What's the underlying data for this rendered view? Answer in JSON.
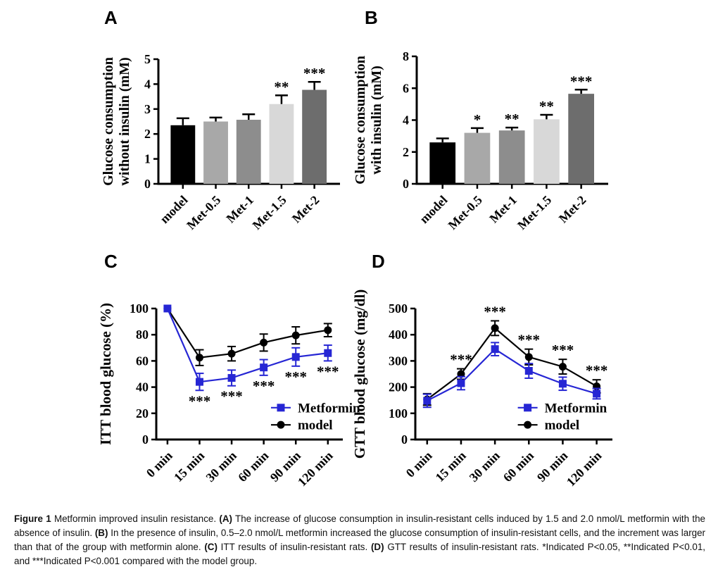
{
  "panels": [
    {
      "letter": "A"
    },
    {
      "letter": "B"
    },
    {
      "letter": "C"
    },
    {
      "letter": "D"
    }
  ],
  "colors": {
    "metformin_blue": "#2626d4",
    "model_black": "#000000",
    "axis": "#000000"
  },
  "chart_data": [
    {
      "panel": "A",
      "type": "bar",
      "ylabel_lines": [
        "Glucose consumption",
        "without insulin (mM)"
      ],
      "ylim": [
        0,
        5
      ],
      "yticks": [
        0,
        1,
        2,
        3,
        4,
        5
      ],
      "categories": [
        "model",
        "Met-0.5",
        "Met-1",
        "Met-1.5",
        "Met-2"
      ],
      "values": [
        2.35,
        2.5,
        2.57,
        3.2,
        3.77
      ],
      "errors": [
        0.28,
        0.16,
        0.22,
        0.35,
        0.32
      ],
      "sig": [
        "",
        "",
        "",
        "**",
        "***"
      ],
      "bar_colors": [
        "#000000",
        "#a8a8a8",
        "#8d8d8d",
        "#d8d8d8",
        "#6d6d6d"
      ],
      "grid": "off"
    },
    {
      "panel": "B",
      "type": "bar",
      "ylabel_lines": [
        "Glucose consumption",
        "with insulin (mM)"
      ],
      "ylim": [
        0,
        8
      ],
      "yticks": [
        0,
        2,
        4,
        6,
        8
      ],
      "categories": [
        "model",
        "Met-0.5",
        "Met-1",
        "Met-1.5",
        "Met-2"
      ],
      "values": [
        2.6,
        3.2,
        3.35,
        4.05,
        5.65
      ],
      "errors": [
        0.25,
        0.3,
        0.18,
        0.28,
        0.26
      ],
      "sig": [
        "",
        "*",
        "**",
        "**",
        "***"
      ],
      "bar_colors": [
        "#000000",
        "#a8a8a8",
        "#8d8d8d",
        "#d8d8d8",
        "#6d6d6d"
      ],
      "grid": "off"
    },
    {
      "panel": "C",
      "type": "line",
      "ylabel_lines": [
        "ITT blood glucose (%)"
      ],
      "ylim": [
        0,
        100
      ],
      "yticks": [
        0,
        20,
        40,
        60,
        80,
        100
      ],
      "categories": [
        "0 min",
        "15 min",
        "30 min",
        "60 min",
        "90 min",
        "120 min"
      ],
      "series": [
        {
          "name": "Metformin",
          "color": "#2626d4",
          "marker": "square",
          "values": [
            100,
            44,
            47,
            55,
            63,
            66
          ],
          "errors": [
            0,
            6.5,
            6,
            6,
            7,
            6
          ],
          "sig": [
            "",
            "***",
            "***",
            "***",
            "***",
            "***"
          ],
          "sig_pos": "below"
        },
        {
          "name": "model",
          "color": "#000000",
          "marker": "circle",
          "values": [
            100,
            62.5,
            65.5,
            74,
            79.5,
            83.5
          ],
          "errors": [
            0,
            6,
            5.5,
            6.5,
            6.5,
            5
          ],
          "sig": [
            "",
            "",
            "",
            "",
            "",
            ""
          ],
          "sig_pos": "above"
        }
      ],
      "legend": {
        "position": "inside-bottom-right",
        "x_frac": 0.615,
        "row_fracs": [
          0.757,
          0.888
        ]
      },
      "grid": "off"
    },
    {
      "panel": "D",
      "type": "line",
      "ylabel_lines": [
        "GTT blood glucose (mg/dl)"
      ],
      "ylim": [
        0,
        500
      ],
      "yticks": [
        0,
        100,
        200,
        300,
        400,
        500
      ],
      "categories": [
        "0 min",
        "15 min",
        "30 min",
        "60 min",
        "90 min",
        "120 min"
      ],
      "series": [
        {
          "name": "Metformin",
          "color": "#2626d4",
          "marker": "square",
          "values": [
            148,
            215,
            345,
            262,
            213,
            175
          ],
          "errors": [
            25,
            25,
            25,
            28,
            25,
            20
          ],
          "sig": [
            "",
            "",
            "",
            "",
            "",
            ""
          ],
          "sig_pos": "below"
        },
        {
          "name": "model",
          "color": "#000000",
          "marker": "circle",
          "values": [
            153,
            250,
            425,
            315,
            278,
            203
          ],
          "errors": [
            22,
            20,
            28,
            30,
            28,
            25
          ],
          "sig": [
            "",
            "***",
            "***",
            "***",
            "***",
            "***"
          ],
          "sig_pos": "above"
        }
      ],
      "legend": {
        "position": "inside-bottom-right",
        "x_frac": 0.52,
        "row_fracs": [
          0.757,
          0.888
        ]
      },
      "grid": "off"
    }
  ],
  "caption": {
    "parts": [
      {
        "text": "Figure 1",
        "bold": true
      },
      {
        "text": " Metformin improved insulin resistance. ",
        "bold": false
      },
      {
        "text": "(A)",
        "bold": true
      },
      {
        "text": " The increase of glucose consumption in insulin-resistant cells induced by 1.5 and 2.0 nmol/L metformin with the absence of insulin. ",
        "bold": false
      },
      {
        "text": "(B)",
        "bold": true
      },
      {
        "text": " In the presence of insulin, 0.5–2.0 nmol/L metformin increased the glucose consumption of insulin-resistant cells, and the increment was larger than that of the group with metformin alone. ",
        "bold": false
      },
      {
        "text": "(C)",
        "bold": true
      },
      {
        "text": " ITT results of insulin-resistant rats. ",
        "bold": false
      },
      {
        "text": "(D)",
        "bold": true
      },
      {
        "text": " GTT results of insulin-resistant rats. *Indicated P<0.05, **Indicated P<0.01, and ***Indicated P<0.001 compared with the model group.",
        "bold": false
      }
    ]
  }
}
